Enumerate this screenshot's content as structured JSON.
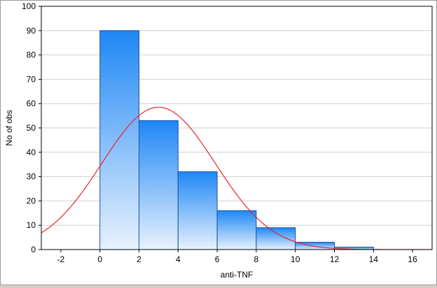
{
  "chart_data": {
    "type": "bar",
    "subtype": "histogram with fitted normal curve",
    "xlabel": "anti-TNF",
    "ylabel": "No of obs",
    "xlim": [
      -3,
      17
    ],
    "ylim": [
      0,
      100
    ],
    "x_ticks": [
      -2,
      0,
      2,
      4,
      6,
      8,
      10,
      12,
      14,
      16
    ],
    "y_ticks": [
      0,
      10,
      20,
      30,
      40,
      50,
      60,
      70,
      80,
      90,
      100
    ],
    "bins": [
      {
        "from": 0,
        "to": 2,
        "value": 90
      },
      {
        "from": 2,
        "to": 4,
        "value": 53
      },
      {
        "from": 4,
        "to": 6,
        "value": 32
      },
      {
        "from": 6,
        "to": 8,
        "value": 16
      },
      {
        "from": 8,
        "to": 10,
        "value": 9
      },
      {
        "from": 10,
        "to": 12,
        "value": 3
      },
      {
        "from": 12,
        "to": 14,
        "value": 1
      }
    ],
    "fit_curve": {
      "type": "normal",
      "mean": 3.0,
      "sd": 2.9,
      "peak": 58.5
    },
    "grid": {
      "horizontal": true,
      "vertical": false
    },
    "colors": {
      "bar_top": "#1e87f5",
      "bar_bottom": "#e8f2fd",
      "bar_edge": "#1f4fa0",
      "curve": "#e8242a",
      "grid": "#cfcfcf"
    }
  }
}
